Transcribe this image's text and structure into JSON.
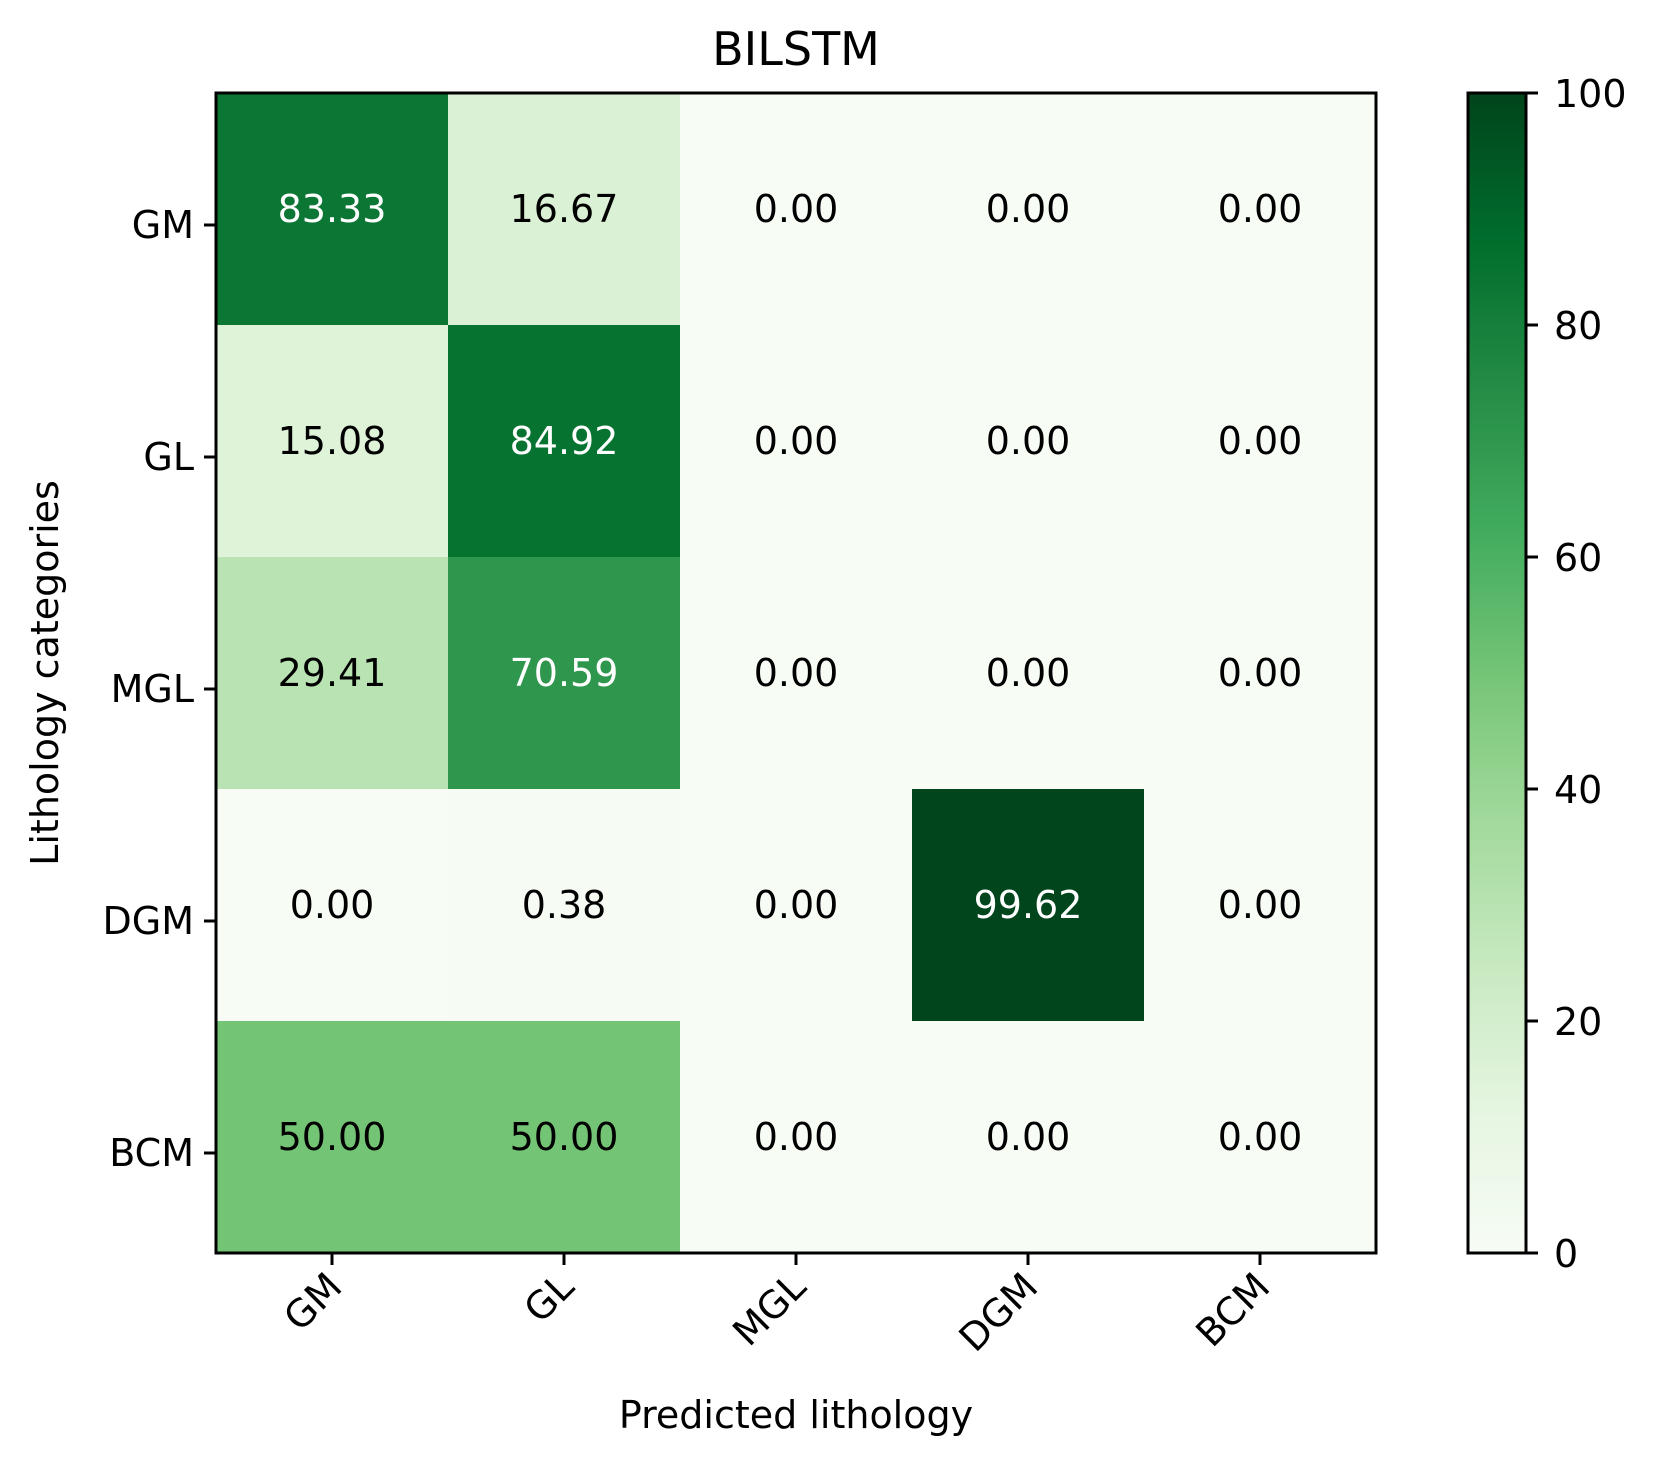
{
  "chart_data": {
    "type": "heatmap",
    "title": "BILSTM",
    "xlabel": "Predicted lithology",
    "ylabel": "Lithology categories",
    "x_categories": [
      "GM",
      "GL",
      "MGL",
      "DGM",
      "BCM"
    ],
    "y_categories": [
      "GM",
      "GL",
      "MGL",
      "DGM",
      "BCM"
    ],
    "values": [
      [
        83.33,
        16.67,
        0.0,
        0.0,
        0.0
      ],
      [
        15.08,
        84.92,
        0.0,
        0.0,
        0.0
      ],
      [
        29.41,
        70.59,
        0.0,
        0.0,
        0.0
      ],
      [
        0.0,
        0.38,
        0.0,
        99.62,
        0.0
      ],
      [
        50.0,
        50.0,
        0.0,
        0.0,
        0.0
      ]
    ],
    "value_labels": [
      [
        "83.33",
        "16.67",
        "0.00",
        "0.00",
        "0.00"
      ],
      [
        "15.08",
        "84.92",
        "0.00",
        "0.00",
        "0.00"
      ],
      [
        "29.41",
        "70.59",
        "0.00",
        "0.00",
        "0.00"
      ],
      [
        "0.00",
        "0.38",
        "0.00",
        "99.62",
        "0.00"
      ],
      [
        "50.00",
        "50.00",
        "0.00",
        "0.00",
        "0.00"
      ]
    ],
    "colormap": "Greens",
    "colorbar": {
      "range": [
        0,
        100
      ],
      "ticks": [
        0,
        20,
        40,
        60,
        80,
        100
      ],
      "tick_labels": [
        "0",
        "20",
        "40",
        "60",
        "80",
        "100"
      ]
    },
    "x_tick_rotation": "45 degrees",
    "grid": false
  }
}
